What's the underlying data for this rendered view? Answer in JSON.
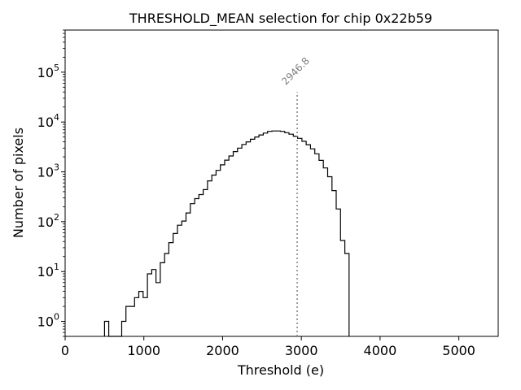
{
  "chart_data": {
    "type": "histogram",
    "title": "THRESHOLD_MEAN selection for chip 0x22b59",
    "xlabel": "Threshold (e)",
    "ylabel": "Number of pixels",
    "xlim": [
      0,
      5500
    ],
    "ylim": [
      0.5,
      700000
    ],
    "yscale": "log",
    "x_ticks": [
      0,
      1000,
      2000,
      3000,
      4000,
      5000
    ],
    "x_tick_labels": [
      "0",
      "1000",
      "2000",
      "3000",
      "4000",
      "5000"
    ],
    "y_ticks": [
      1,
      10,
      100,
      1000,
      10000,
      100000
    ],
    "y_tick_labels": [
      {
        "base": "10",
        "exp": "0"
      },
      {
        "base": "10",
        "exp": "1"
      },
      {
        "base": "10",
        "exp": "2"
      },
      {
        "base": "10",
        "exp": "3"
      },
      {
        "base": "10",
        "exp": "4"
      },
      {
        "base": "10",
        "exp": "5"
      }
    ],
    "bin_start": 500,
    "bin_width": 54.5,
    "counts": [
      1,
      0,
      0,
      0,
      1,
      2,
      2,
      3,
      4,
      3,
      9,
      11,
      6,
      15,
      23,
      38,
      58,
      85,
      103,
      150,
      230,
      290,
      350,
      440,
      660,
      860,
      1070,
      1380,
      1720,
      2080,
      2550,
      3000,
      3550,
      4000,
      4500,
      5000,
      5500,
      6000,
      6500,
      6600,
      6600,
      6500,
      6100,
      5700,
      5200,
      4700,
      4100,
      3500,
      2900,
      2300,
      1700,
      1200,
      800,
      420,
      180,
      42,
      23
    ],
    "annotation": {
      "value": 2946.8,
      "label": "2946.8",
      "line_top": 40000
    }
  }
}
